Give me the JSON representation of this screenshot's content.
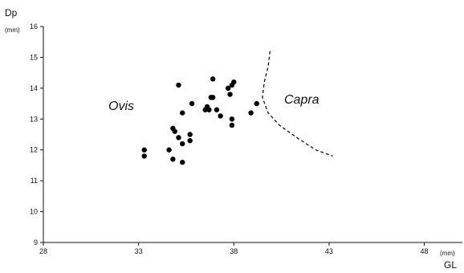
{
  "chart_data": {
    "type": "scatter",
    "title": "",
    "xlabel": "GL",
    "ylabel": "Dp",
    "x_unit": "(mm)",
    "y_unit": "(mm)",
    "xlim": [
      28,
      50
    ],
    "ylim": [
      9,
      16
    ],
    "x_ticks": [
      "28",
      "33",
      "38",
      "43",
      "48"
    ],
    "y_ticks": [
      "9",
      "10",
      "11",
      "12",
      "13",
      "14",
      "15",
      "16"
    ],
    "grid": false,
    "legend": "none",
    "point_color": "#000000",
    "region_labels": [
      "Ovis",
      "Capra"
    ],
    "points": [
      {
        "x": 33.3,
        "y": 12.0
      },
      {
        "x": 33.3,
        "y": 11.8
      },
      {
        "x": 34.6,
        "y": 12.0
      },
      {
        "x": 34.8,
        "y": 11.7
      },
      {
        "x": 34.8,
        "y": 12.7
      },
      {
        "x": 34.9,
        "y": 12.6
      },
      {
        "x": 35.1,
        "y": 12.4
      },
      {
        "x": 35.1,
        "y": 14.1
      },
      {
        "x": 35.3,
        "y": 11.6
      },
      {
        "x": 35.3,
        "y": 12.2
      },
      {
        "x": 35.3,
        "y": 13.2
      },
      {
        "x": 35.7,
        "y": 12.5
      },
      {
        "x": 35.7,
        "y": 12.3
      },
      {
        "x": 35.8,
        "y": 13.5
      },
      {
        "x": 36.5,
        "y": 13.3
      },
      {
        "x": 36.6,
        "y": 13.4
      },
      {
        "x": 36.7,
        "y": 13.3
      },
      {
        "x": 36.8,
        "y": 13.7
      },
      {
        "x": 36.9,
        "y": 14.3
      },
      {
        "x": 36.9,
        "y": 13.7
      },
      {
        "x": 37.1,
        "y": 13.3
      },
      {
        "x": 37.3,
        "y": 13.1
      },
      {
        "x": 37.7,
        "y": 14.0
      },
      {
        "x": 37.8,
        "y": 13.8
      },
      {
        "x": 37.9,
        "y": 14.1
      },
      {
        "x": 38.0,
        "y": 14.2
      },
      {
        "x": 37.9,
        "y": 13.0
      },
      {
        "x": 37.9,
        "y": 12.8
      },
      {
        "x": 38.9,
        "y": 13.2
      },
      {
        "x": 39.2,
        "y": 13.5
      }
    ],
    "boundary_line": [
      {
        "x": 39.9,
        "y": 15.2
      },
      {
        "x": 39.8,
        "y": 14.7
      },
      {
        "x": 39.6,
        "y": 14.2
      },
      {
        "x": 39.5,
        "y": 13.7
      },
      {
        "x": 39.8,
        "y": 13.2
      },
      {
        "x": 40.4,
        "y": 12.8
      },
      {
        "x": 41.3,
        "y": 12.4
      },
      {
        "x": 42.3,
        "y": 12.0
      },
      {
        "x": 43.2,
        "y": 11.8
      }
    ]
  }
}
